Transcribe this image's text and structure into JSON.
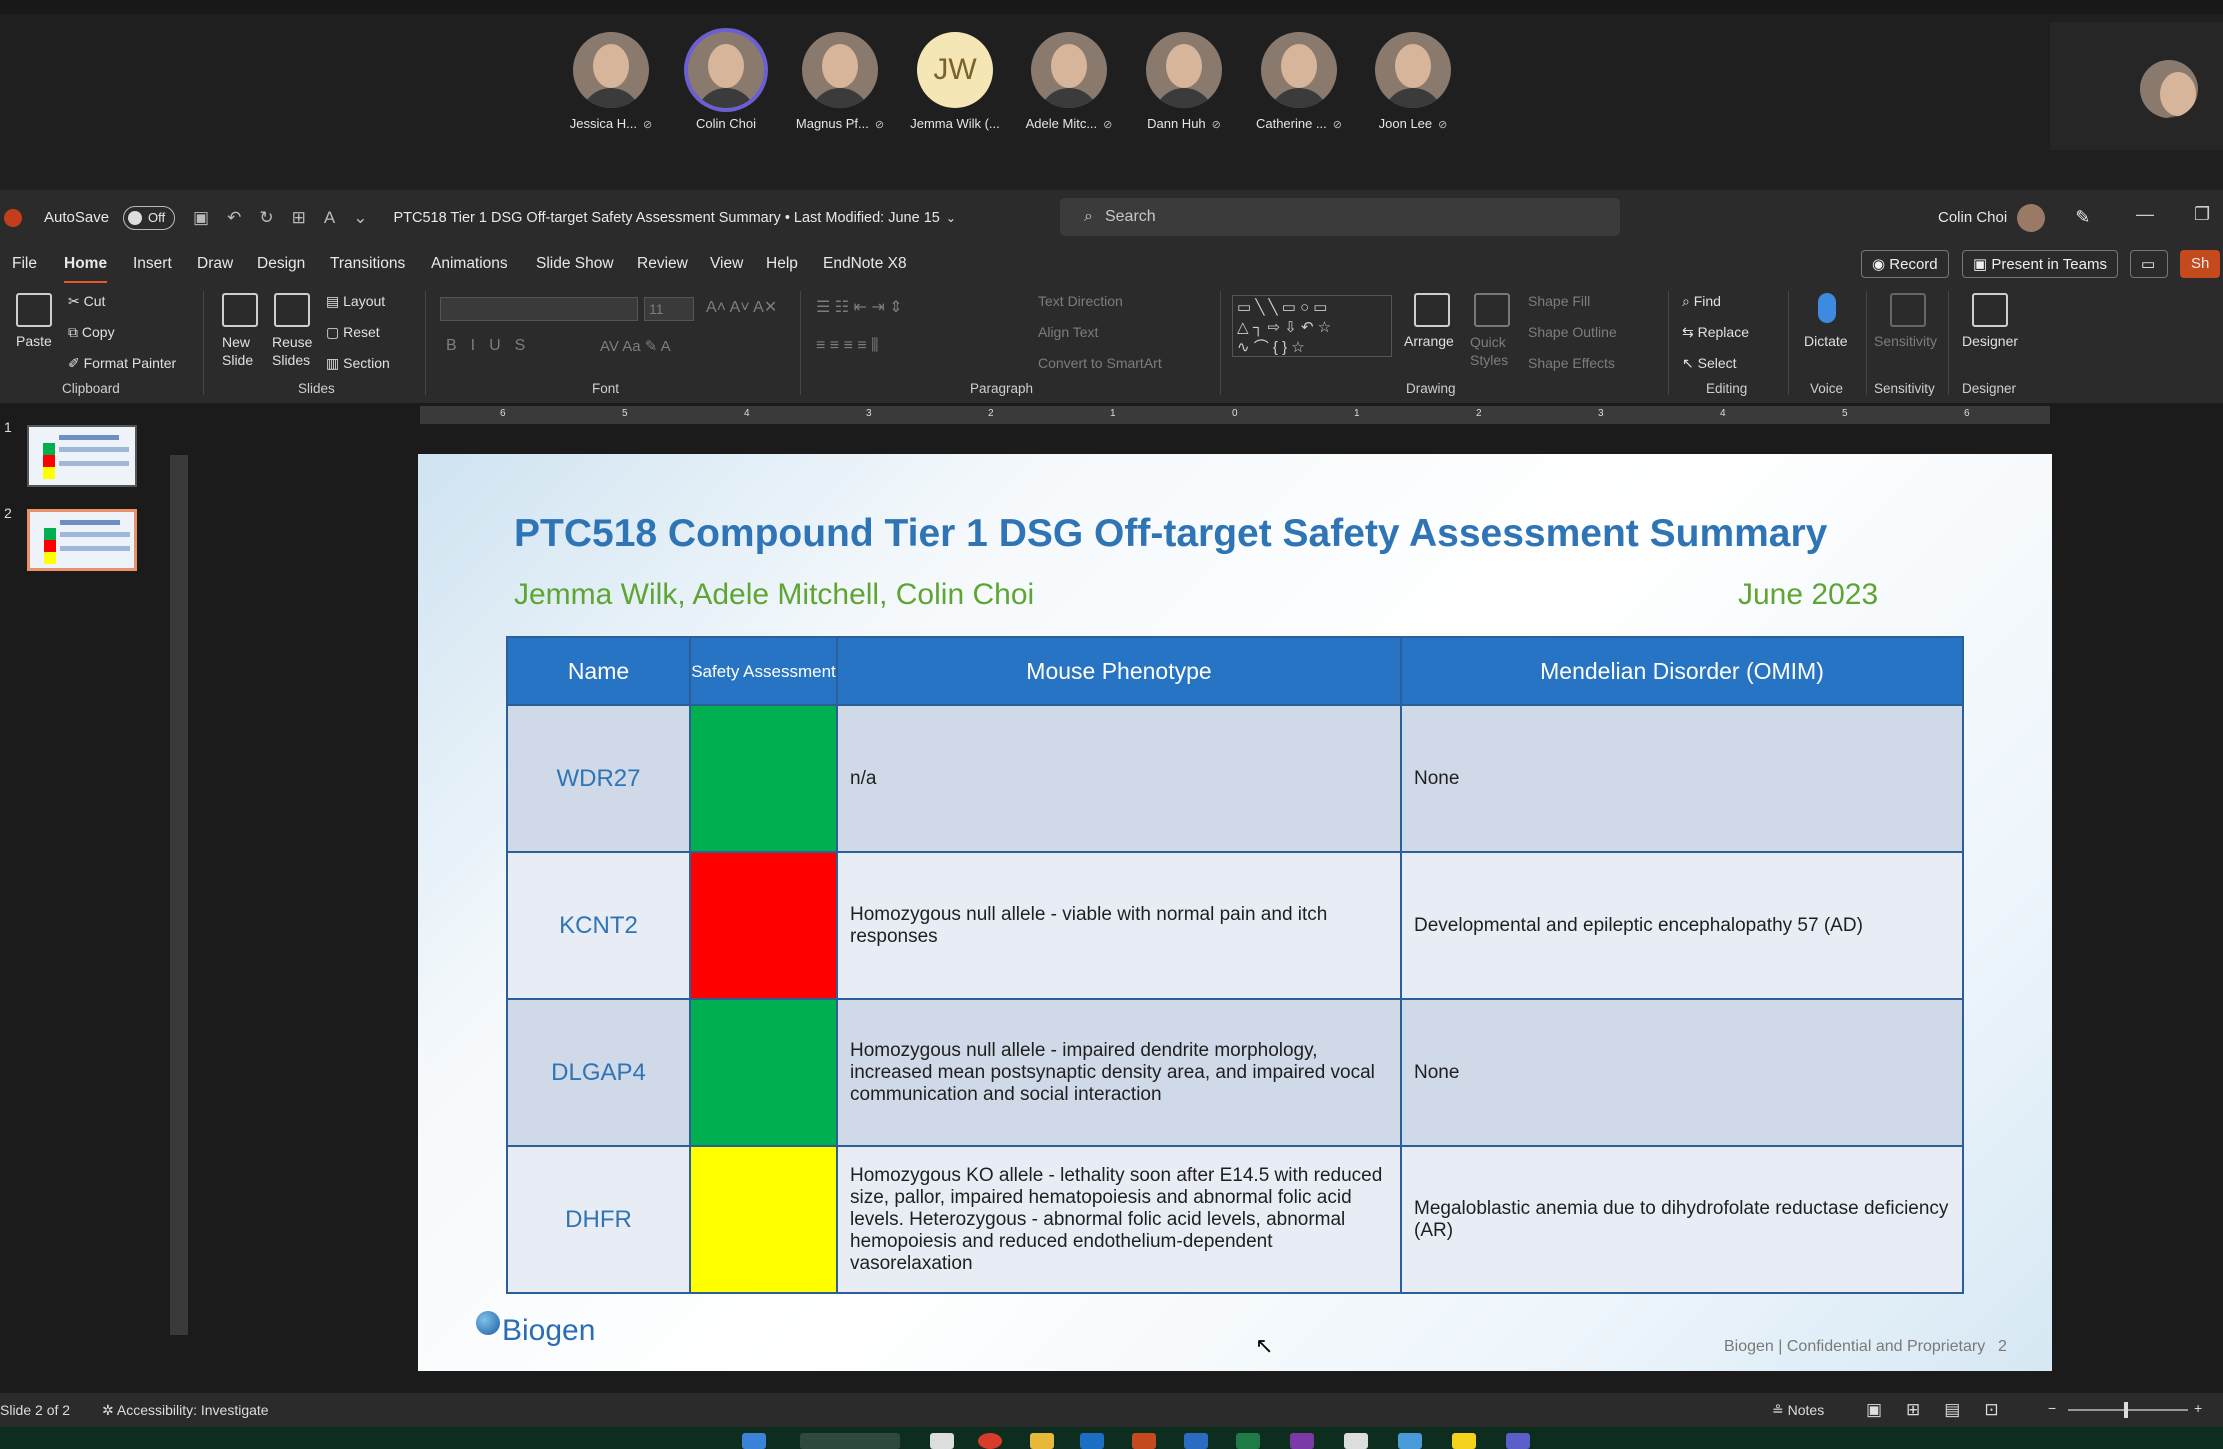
{
  "meeting": {
    "participants": [
      {
        "name": "Jessica H...",
        "initials": "",
        "muted": true
      },
      {
        "name": "Colin Choi",
        "initials": "",
        "muted": false,
        "speaking": true
      },
      {
        "name": "Magnus Pf...",
        "initials": "",
        "muted": true
      },
      {
        "name": "Jemma Wilk (...",
        "initials": "JW",
        "muted": false
      },
      {
        "name": "Adele Mitc...",
        "initials": "",
        "muted": true
      },
      {
        "name": "Dann Huh",
        "initials": "",
        "muted": true
      },
      {
        "name": "Catherine ...",
        "initials": "",
        "muted": true
      },
      {
        "name": "Joon Lee",
        "initials": "",
        "muted": true
      }
    ]
  },
  "titlebar": {
    "autosave_label": "AutoSave",
    "autosave_state": "Off",
    "doc_title": "PTC518 Tier 1 DSG Off-target Safety Assessment Summary • Last Modified: June 15",
    "search_placeholder": "Search",
    "user_name": "Colin Choi"
  },
  "menu": {
    "tabs": [
      "File",
      "Home",
      "Insert",
      "Draw",
      "Design",
      "Transitions",
      "Animations",
      "Slide Show",
      "Review",
      "View",
      "Help",
      "EndNote X8"
    ],
    "active_tab": "Home",
    "record": "Record",
    "present": "Present in Teams",
    "share": "Sh"
  },
  "ribbon": {
    "clipboard": {
      "paste": "Paste",
      "cut": "Cut",
      "copy": "Copy",
      "format_painter": "Format Painter",
      "label": "Clipboard"
    },
    "slides": {
      "new_slide": "New Slide",
      "reuse_slides": "Reuse Slides",
      "layout": "Layout",
      "reset": "Reset",
      "section": "Section",
      "label": "Slides"
    },
    "font": {
      "size": "11",
      "label": "Font"
    },
    "paragraph": {
      "text_direction": "Text Direction",
      "align_text": "Align Text",
      "convert_smartart": "Convert to SmartArt",
      "label": "Paragraph"
    },
    "drawing": {
      "arrange": "Arrange",
      "quick_styles": "Quick Styles",
      "shape_fill": "Shape Fill",
      "shape_outline": "Shape Outline",
      "shape_effects": "Shape Effects",
      "label": "Drawing"
    },
    "editing": {
      "find": "Find",
      "replace": "Replace",
      "select": "Select",
      "label": "Editing"
    },
    "voice": {
      "dictate": "Dictate",
      "label": "Voice"
    },
    "sensitivity": {
      "button": "Sensitivity",
      "label": "Sensitivity"
    },
    "designer": {
      "button": "Designer",
      "label": "Designer"
    }
  },
  "thumbnails": {
    "numbers": [
      "1",
      "2"
    ],
    "selected": 2
  },
  "ruler": {
    "labels": [
      "6",
      "5",
      "4",
      "3",
      "2",
      "1",
      "0",
      "1",
      "2",
      "3",
      "4",
      "5",
      "6"
    ]
  },
  "slide": {
    "title": "PTC518 Compound Tier 1 DSG Off-target Safety Assessment Summary",
    "authors": "Jemma Wilk, Adele Mitchell, Colin Choi",
    "date": "June 2023",
    "table": {
      "headers": [
        "Name",
        "Safety Assessment",
        "Mouse Phenotype",
        "Mendelian Disorder (OMIM)"
      ],
      "rows": [
        {
          "name": "WDR27",
          "safety_color": "#00b050",
          "phenotype": "n/a",
          "disorder": "None"
        },
        {
          "name": "KCNT2",
          "safety_color": "#ff0000",
          "phenotype": "Homozygous null allele - viable with normal pain and itch responses",
          "disorder": "Developmental and epileptic encephalopathy 57 (AD)"
        },
        {
          "name": "DLGAP4",
          "safety_color": "#00b050",
          "phenotype": "Homozygous null allele - impaired dendrite morphology, increased mean postsynaptic density area, and impaired vocal communication and social interaction",
          "disorder": "None"
        },
        {
          "name": "DHFR",
          "safety_color": "#ffff00",
          "phenotype": "Homozygous KO allele - lethality soon after E14.5 with reduced size, pallor, impaired hematopoiesis and abnormal folic acid levels. Heterozygous - abnormal folic acid levels, abnormal hemopoiesis and reduced endothelium-dependent vasorelaxation",
          "disorder": "Megaloblastic anemia due to dihydrofolate reductase deficiency (AR)"
        }
      ]
    },
    "logo": "Biogen",
    "footer": "Biogen | Confidential and Proprietary",
    "page_number": "2"
  },
  "statusbar": {
    "slide_info": "Slide 2 of 2",
    "accessibility": "Accessibility: Investigate",
    "notes": "Notes"
  },
  "colors": {
    "accent": "#e35a2e",
    "title_blue": "#2f74b5",
    "author_green": "#5ea533",
    "table_header": "#2773c4"
  }
}
